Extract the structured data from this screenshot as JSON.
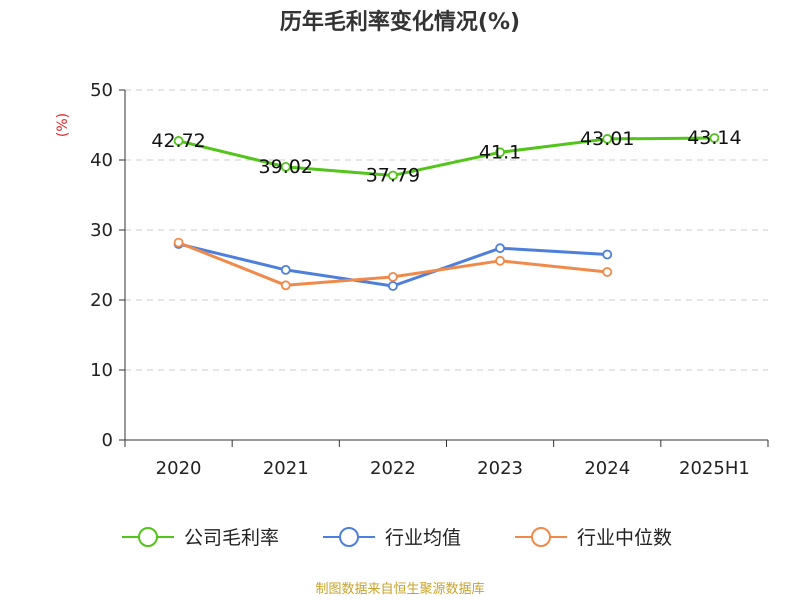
{
  "chart_data": {
    "type": "line",
    "title": "历年毛利率变化情况(%)",
    "ylabel": "(%)",
    "categories": [
      "2020",
      "2021",
      "2022",
      "2023",
      "2024",
      "2025H1"
    ],
    "ylim": [
      0,
      50
    ],
    "yticks": [
      "0",
      "10",
      "20",
      "30",
      "40",
      "50"
    ],
    "grid": true,
    "legend_position": "bottom",
    "series": [
      {
        "name": "公司毛利率",
        "color": "#52c41a",
        "values": [
          42.72,
          39.02,
          37.79,
          41.1,
          43.01,
          43.14
        ],
        "labels": [
          "42.72",
          "39.02",
          "37.79",
          "41.1",
          "43.01",
          "43.14"
        ]
      },
      {
        "name": "行业均值",
        "color": "#4e7fdc",
        "values": [
          28.0,
          24.3,
          22.0,
          27.4,
          26.5,
          null
        ]
      },
      {
        "name": "行业中位数",
        "color": "#f08a4b",
        "values": [
          28.2,
          22.1,
          23.3,
          25.6,
          24.0,
          null
        ]
      }
    ]
  },
  "source": "制图数据来自恒生聚源数据库"
}
